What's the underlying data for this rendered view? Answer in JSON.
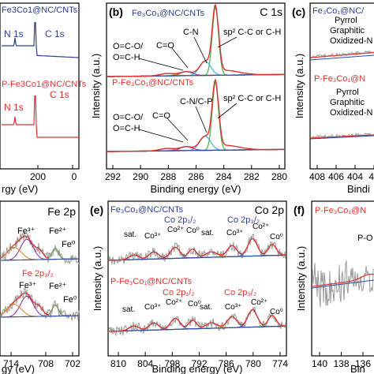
{
  "figure": {
    "panels": [
      {
        "id": "a",
        "title": "",
        "labels": [
          "N 1s",
          "C 1s",
          "N 1s",
          "C 1s"
        ],
        "samples": [
          "Fe3Co1@NC/CNTs",
          "P-Fe3Co1@NC/CNTs"
        ],
        "xlabel": "rgy (eV)",
        "xticks": [
          "200",
          "0"
        ],
        "ylabel": ""
      },
      {
        "id": "b",
        "title": "C 1s",
        "samples": [
          "Fe₃Co₁@NC/CNTs",
          "P-Fe₃Co₁@NC/CNTs"
        ],
        "top_labels": [
          "O=C-O/",
          "O=C-H",
          "C=O",
          "C-N",
          "sp² C-C or C-H"
        ],
        "bottom_labels": [
          "O=C-O/",
          "O=C-H",
          "C=O",
          "C-N/C-P",
          "sp² C-C or C-H"
        ],
        "xlabel": "Binding energy (eV)",
        "ylabel": "Intensity (a.u.)",
        "xticks": [
          "292",
          "290",
          "288",
          "286",
          "284",
          "282",
          "280"
        ]
      },
      {
        "id": "c",
        "title": "",
        "samples": [
          "Fe₃Co₁@NC/",
          "P-Fe₃Co₁@N"
        ],
        "top_labels": [
          "Pyrrol",
          "Graphitic",
          "Oxidized-N"
        ],
        "bottom_labels": [
          "Pyrrol",
          "Graphitic",
          "Oxidized-N"
        ],
        "xlabel": "Bindi",
        "ylabel": "Intensity (a.u.)",
        "xticks": [
          "408",
          "406",
          "404",
          "40"
        ]
      },
      {
        "id": "d",
        "title": "Fe 2p",
        "top_labels": [
          "Fe³⁺",
          "Fe²⁺",
          "Fe⁰"
        ],
        "top_peak": "",
        "bottom_labels": [
          "Fe³⁺",
          "Fe²⁺",
          "Fe⁰"
        ],
        "bottom_peak": "Fe 2p₃/₂",
        "xlabel": "gy (eV)",
        "xticks": [
          "714",
          "708",
          "702"
        ]
      },
      {
        "id": "e",
        "title": "Co 2p",
        "samples": [
          "Fe₃Co₁@NC/CNTs",
          "P-Fe₃Co₁@NC/CNTs"
        ],
        "top_peaks": [
          "Co 2p₁/₂",
          "Co 2p₃/₂"
        ],
        "top_labels": [
          "sat.",
          "Co³⁺",
          "Co²⁺",
          "Co⁰",
          "sat.",
          "Co³⁺",
          "Co²⁺",
          "Co⁰"
        ],
        "bottom_peaks": [
          "Co 2p₁/₂",
          "Co 2p₃/₂"
        ],
        "bottom_labels": [
          "sat.",
          "Co³⁺",
          "Co²⁺",
          "Co⁰",
          "sat.",
          "Co³⁺",
          "Co²⁺",
          "Co⁰"
        ],
        "xlabel": "Binding energy (eV)",
        "ylabel": "Intensity (a.u.)",
        "xticks": [
          "810",
          "804",
          "798",
          "792",
          "786",
          "780",
          "774"
        ]
      },
      {
        "id": "f",
        "title": "",
        "samples": [
          "P-Fe₃Co₁@N"
        ],
        "labels": [
          "P-O"
        ],
        "xlabel": "Bin",
        "ylabel": "Intensity (a.u.)",
        "xticks": [
          "140",
          "138",
          "136"
        ]
      }
    ],
    "panel_letters": [
      "(b)",
      "(c)",
      "(e)",
      "(f)"
    ],
    "colors": {
      "navy": "#2d3e8f",
      "red": "#e03030",
      "green": "#5cb85c",
      "cyan": "#3fb8c8",
      "purple": "#8a3aa8",
      "orange": "#e08a2a",
      "gray": "#9a9a9a",
      "blue": "#2c4aa8"
    }
  }
}
